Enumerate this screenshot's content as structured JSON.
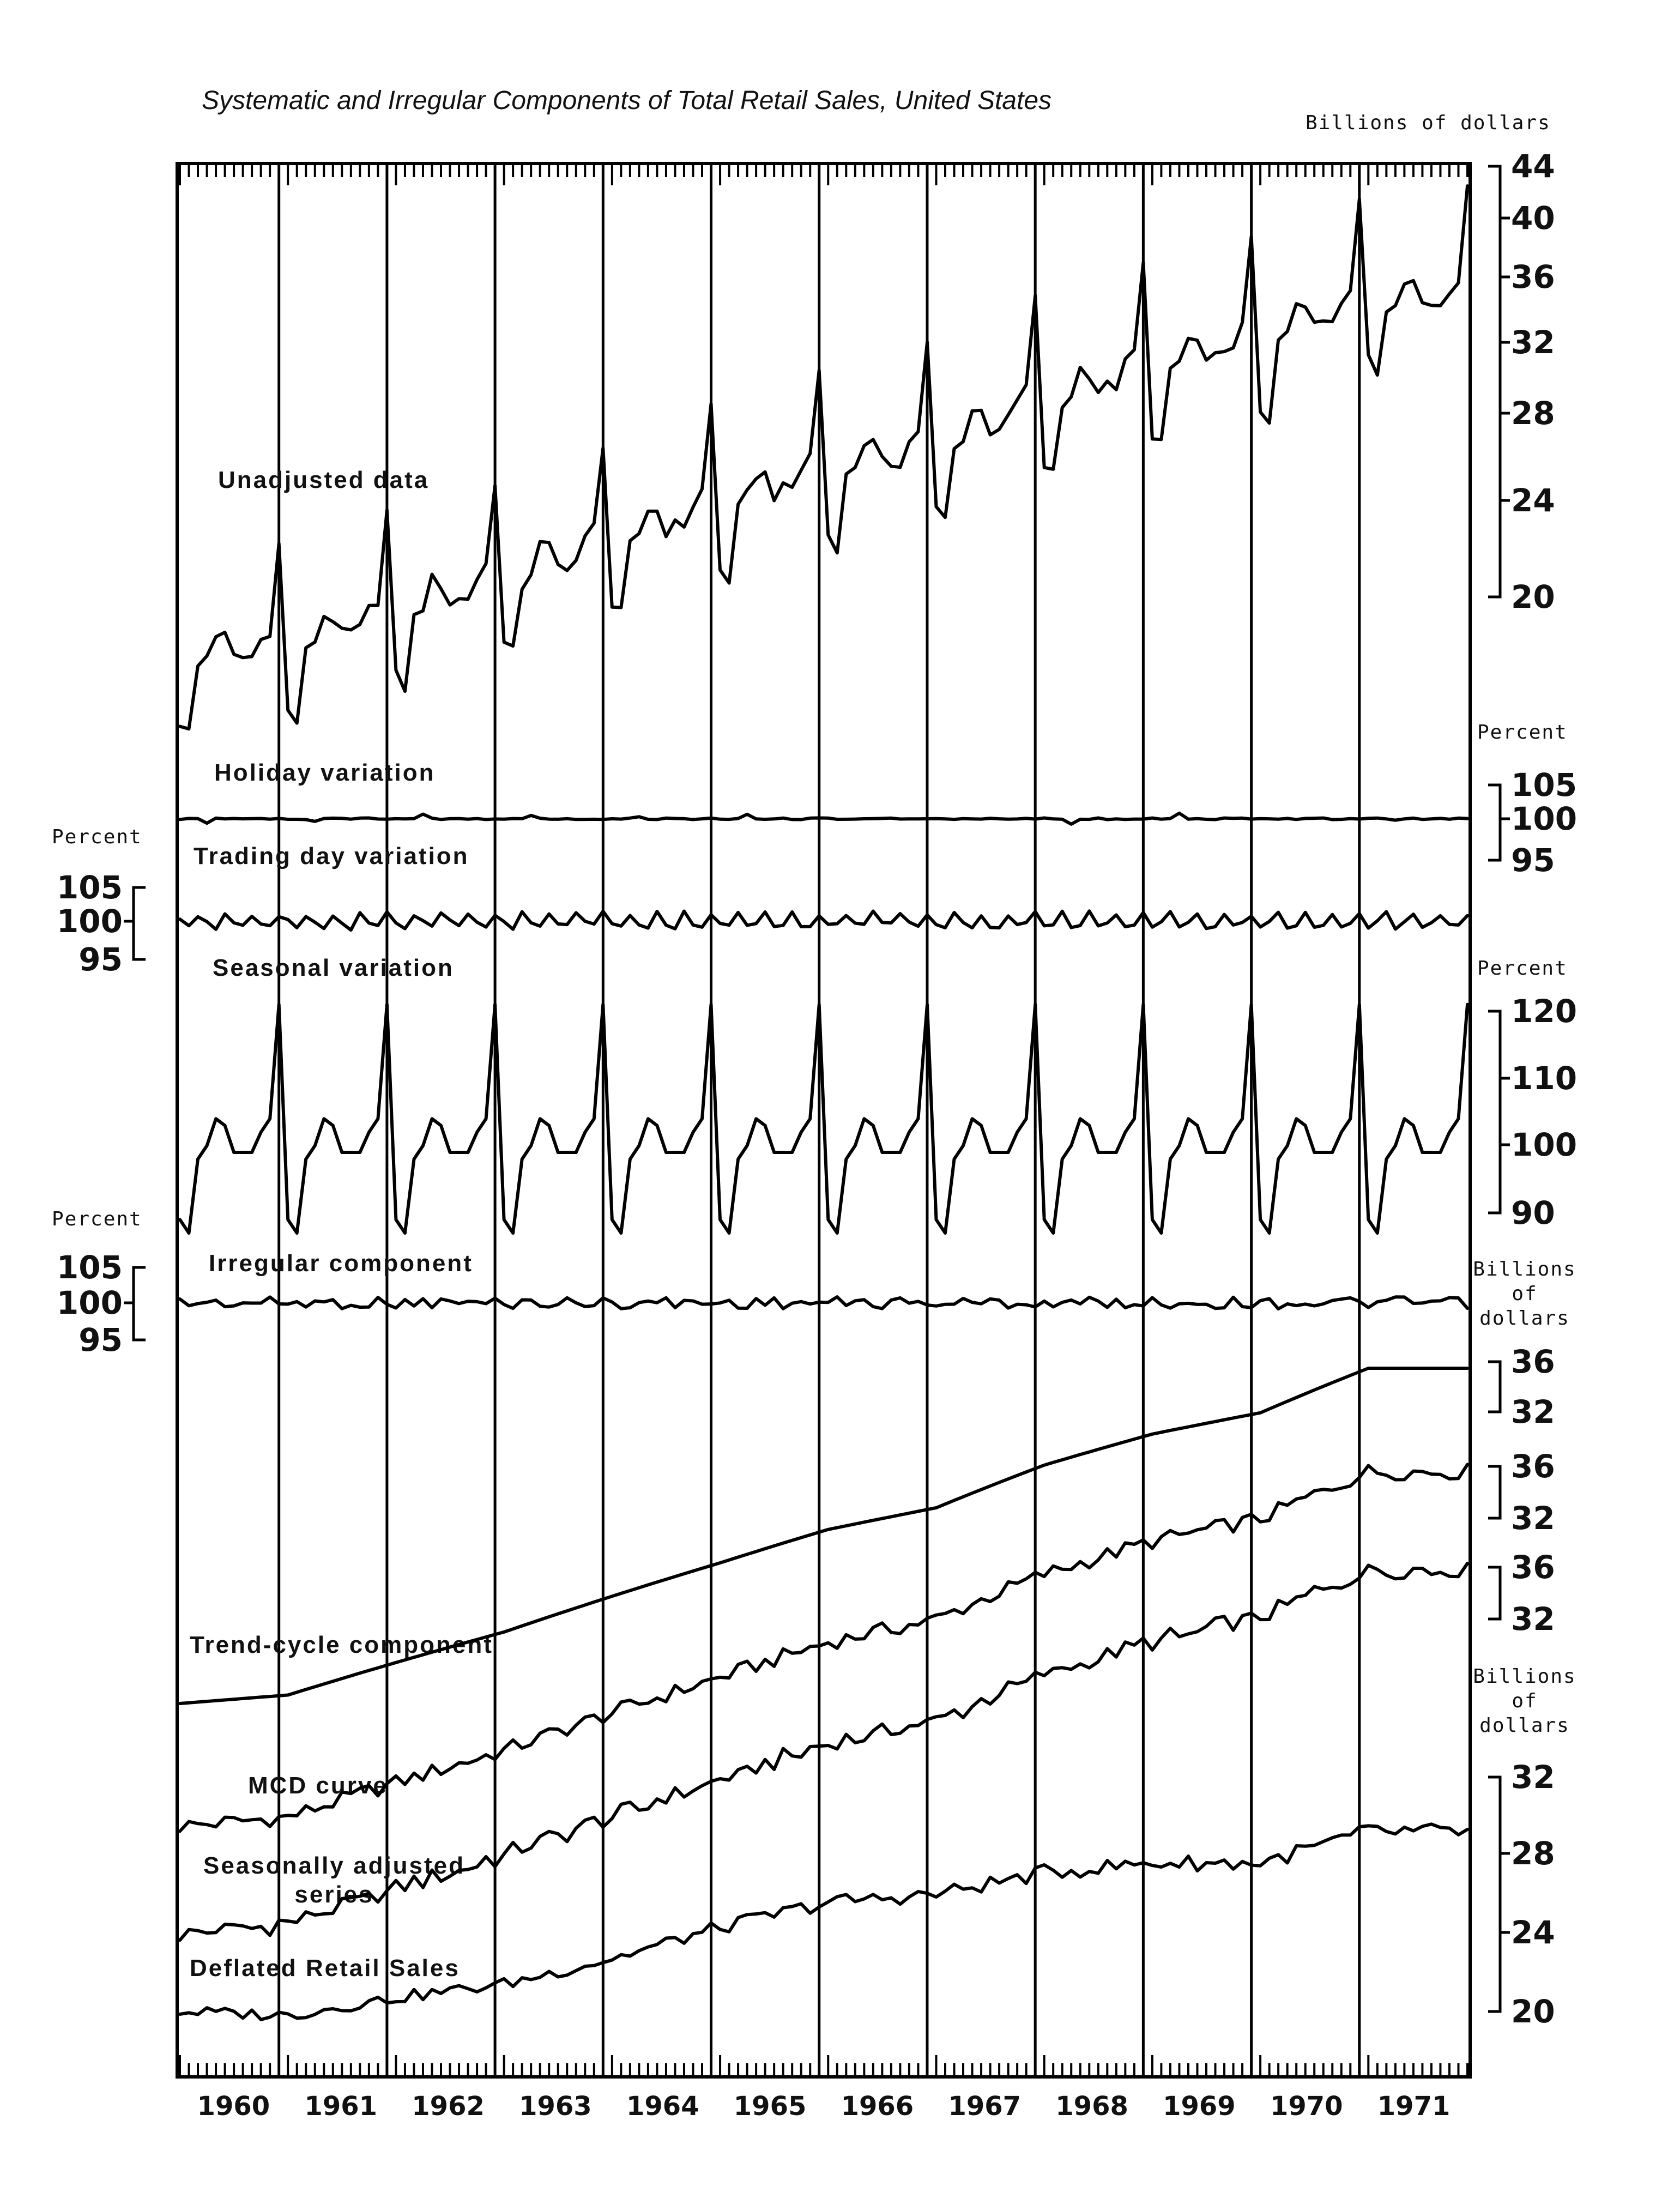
{
  "chart_data": {
    "type": "line",
    "title": "Systematic and Irregular Components of Total Retail Sales, United States",
    "x_axis": {
      "years": [
        "1960",
        "1961",
        "1962",
        "1963",
        "1964",
        "1965",
        "1966",
        "1967",
        "1968",
        "1969",
        "1970",
        "1971"
      ],
      "start": "1960-01",
      "end": "1971-12",
      "frequency": "monthly"
    },
    "axes": [
      {
        "id": "ax-unadjusted",
        "side": "right",
        "unit": "Billions of dollars",
        "ticks": [
          20,
          24,
          28,
          32,
          36,
          40,
          44
        ],
        "ylim": [
          20,
          44
        ],
        "scale": "log"
      },
      {
        "id": "ax-holiday",
        "side": "right",
        "unit": "Percent",
        "ticks": [
          95,
          100,
          105
        ],
        "ylim": [
          95,
          105
        ]
      },
      {
        "id": "ax-trading",
        "side": "left",
        "unit": "Percent",
        "ticks": [
          95,
          100,
          105
        ],
        "ylim": [
          95,
          105
        ]
      },
      {
        "id": "ax-seasonal",
        "side": "right",
        "unit": "Percent",
        "ticks": [
          90,
          100,
          110,
          120
        ],
        "ylim": [
          90,
          120
        ]
      },
      {
        "id": "ax-irregular",
        "side": "left",
        "unit": "Percent",
        "ticks": [
          95,
          100,
          105
        ],
        "ylim": [
          95,
          105
        ]
      },
      {
        "id": "ax-trend",
        "side": "right",
        "unit": "Billions of dollars",
        "ticks": [
          32,
          36
        ],
        "ylim": [
          32,
          36
        ]
      },
      {
        "id": "ax-mcd",
        "side": "right",
        "unit": "",
        "ticks": [
          32,
          36
        ],
        "ylim": [
          32,
          36
        ]
      },
      {
        "id": "ax-sa",
        "side": "right",
        "unit": "",
        "ticks": [
          32,
          36
        ],
        "ylim": [
          32,
          36
        ]
      },
      {
        "id": "ax-deflated",
        "side": "right",
        "unit": "Billions of dollars",
        "ticks": [
          20,
          24,
          28,
          32
        ],
        "ylim": [
          20,
          32
        ]
      }
    ],
    "series": [
      {
        "name": "Unadjusted data",
        "axis": "ax-unadjusted",
        "annual_level": [
          17.9,
          18.2,
          19.4,
          20.6,
          22.1,
          23.6,
          25.2,
          26.3,
          28.6,
          30.4,
          31.7,
          34.6
        ],
        "monthly_factor": [
          0.89,
          0.87,
          0.98,
          1.0,
          1.04,
          1.03,
          0.99,
          0.99,
          0.99,
          1.02,
          1.04,
          1.21
        ]
      },
      {
        "name": "Holiday variation",
        "axis": "ax-holiday",
        "values_note": "",
        "level": 100
      },
      {
        "name": "Trading day variation",
        "axis": "ax-trading",
        "level": 100,
        "amplitude": 2
      },
      {
        "name": "Seasonal variation",
        "axis": "ax-seasonal",
        "monthly_factor_pct": [
          89,
          87,
          98,
          100,
          104,
          103,
          99,
          99,
          99,
          102,
          104,
          121
        ]
      },
      {
        "name": "Irregular component",
        "axis": "ax-irregular",
        "level": 100
      },
      {
        "name": "Trend-cycle component",
        "axis": "ax-trend",
        "annual_level": [
          17.9,
          18.2,
          19.4,
          20.6,
          22.1,
          23.6,
          25.2,
          26.3,
          28.6,
          30.4,
          31.7,
          34.6
        ]
      },
      {
        "name": "MCD curve",
        "axis": "ax-mcd",
        "annual_level": [
          17.9,
          18.2,
          19.4,
          20.6,
          22.1,
          23.6,
          25.2,
          26.3,
          28.6,
          30.4,
          31.7,
          34.6
        ]
      },
      {
        "name": "Seasonally adjusted series",
        "axis": "ax-sa",
        "annual_level": [
          17.9,
          18.2,
          19.4,
          20.6,
          22.1,
          23.6,
          25.2,
          26.3,
          28.6,
          30.4,
          31.7,
          34.6
        ]
      },
      {
        "name": "Deflated Retail Sales",
        "axis": "ax-deflated",
        "annual_level": [
          20.0,
          19.8,
          20.7,
          21.4,
          22.7,
          24.3,
          25.6,
          26.0,
          27.1,
          27.6,
          27.6,
          29.2
        ]
      }
    ],
    "labels": {
      "unadjusted": "Unadjusted data",
      "holiday": "Holiday variation",
      "trading": "Trading day variation",
      "seasonal": "Seasonal variation",
      "irregular": "Irregular component",
      "trend": "Trend-cycle component",
      "mcd": "MCD curve",
      "sa_line1": "Seasonally adjusted",
      "sa_line2": "series",
      "deflated": "Deflated Retail Sales"
    },
    "unit_labels": {
      "billions_of_dollars": "Billions of dollars",
      "percent": "Percent",
      "billions": "Billions",
      "of": "of",
      "dollars": "dollars"
    },
    "grid": "year separators",
    "legend": "none"
  }
}
